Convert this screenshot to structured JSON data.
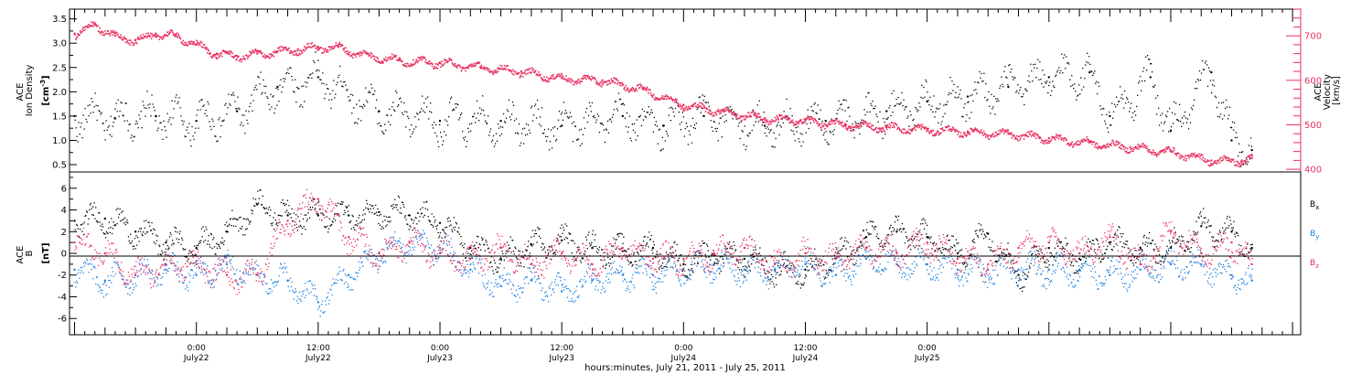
{
  "chart_data": [
    {
      "type": "scatter",
      "panel": "top",
      "ylabel_lines": [
        "ACE",
        "Ion Density"
      ],
      "yunit_base": "[cm",
      "yunit_exp": "-3",
      "yunit_end": "]",
      "ylim": [
        0.35,
        3.7
      ],
      "yticks": [
        "0.5",
        "1.0",
        "1.5",
        "2.0",
        "2.5",
        "3.0",
        "3.5"
      ],
      "y2label_lines": [
        "ACE",
        "Velocity",
        "[km/s]"
      ],
      "y2lim": [
        394,
        760
      ],
      "y2ticks": [
        "400",
        "500",
        "600",
        "700"
      ],
      "xlim_hours": [
        -12.5,
        108.8
      ],
      "series": [
        {
          "color": "#000000",
          "axis": "left",
          "x": [
            -12,
            -8,
            -4,
            0,
            4,
            8,
            12,
            18,
            24,
            30,
            36,
            42,
            46,
            50,
            56,
            62,
            68,
            72,
            76,
            80,
            84,
            88,
            90,
            94,
            96,
            100,
            102,
            104
          ],
          "y": [
            1.5,
            1.45,
            1.5,
            1.4,
            1.6,
            2.1,
            2.3,
            1.6,
            1.4,
            1.4,
            1.3,
            1.5,
            1.3,
            1.5,
            1.3,
            1.4,
            1.6,
            1.8,
            1.9,
            2.1,
            2.3,
            2.4,
            1.5,
            2.3,
            1.2,
            2.4,
            1.0,
            0.8
          ]
        },
        {
          "color": "#e8305f",
          "axis": "right",
          "x": [
            -12,
            -10,
            -8,
            -6,
            -4,
            -2,
            0,
            2,
            4,
            6,
            8,
            10,
            12,
            14,
            16,
            20,
            24,
            28,
            32,
            36,
            40,
            44,
            48,
            52,
            56,
            60,
            64,
            68,
            72,
            76,
            80,
            84,
            88,
            92,
            96,
            100,
            103,
            104
          ],
          "y": [
            705,
            725,
            700,
            690,
            705,
            700,
            680,
            660,
            655,
            660,
            665,
            670,
            675,
            675,
            660,
            645,
            640,
            630,
            620,
            605,
            600,
            580,
            545,
            530,
            515,
            510,
            500,
            495,
            490,
            485,
            480,
            470,
            460,
            450,
            440,
            420,
            420,
            425
          ]
        }
      ]
    },
    {
      "type": "scatter",
      "panel": "bottom",
      "ylabel_lines": [
        "ACE",
        "B"
      ],
      "yunit": "[nT]",
      "ylim": [
        -7.5,
        7.5
      ],
      "yticks": [
        "-6",
        "-4",
        "-2",
        "0",
        "2",
        "4",
        "6"
      ],
      "xlim_hours": [
        -12.5,
        108.8
      ],
      "xticks": [
        {
          "time": "0:00",
          "day": "July22"
        },
        {
          "time": "12:00",
          "day": "July22"
        },
        {
          "time": "0:00",
          "day": "July23"
        },
        {
          "time": "12:00",
          "day": "July23"
        },
        {
          "time": "0:00",
          "day": "July24"
        },
        {
          "time": "12:00",
          "day": "July24"
        },
        {
          "time": "0:00",
          "day": "July25"
        }
      ],
      "xlabel": "hours:minutes, July 21, 2011 - July 25, 2011",
      "legend": [
        {
          "base": "B",
          "sub": "x",
          "color": "#000000"
        },
        {
          "base": "B",
          "sub": "y",
          "color": "#1f7fe0"
        },
        {
          "base": "B",
          "sub": "z",
          "color": "#e8305f"
        }
      ],
      "series": [
        {
          "name": "Bx",
          "color": "#000000",
          "x": [
            -12,
            -9,
            -6,
            -3,
            0,
            3,
            6,
            9,
            12,
            15,
            18,
            21,
            24,
            27,
            30,
            33,
            36,
            39,
            42,
            45,
            48,
            51,
            54,
            57,
            60,
            63,
            66,
            69,
            72,
            75,
            78,
            81,
            84,
            87,
            90,
            93,
            96,
            99,
            102,
            104
          ],
          "y": [
            3,
            3.2,
            2,
            1,
            0.5,
            2,
            4.5,
            3.5,
            3.5,
            3.5,
            3.8,
            3.5,
            2.8,
            0.5,
            -0.5,
            0.8,
            1.2,
            0.5,
            0.2,
            0.5,
            -1,
            -0.2,
            -0.5,
            -1.5,
            -1.5,
            -0.5,
            1.5,
            2,
            1.5,
            0,
            1.8,
            -2,
            0.5,
            -0.5,
            1,
            0.5,
            0.5,
            2.5,
            2,
            0.5
          ]
        },
        {
          "name": "By",
          "color": "#1f7fe0",
          "x": [
            -12,
            -9,
            -6,
            -3,
            0,
            3,
            6,
            9,
            12,
            15,
            18,
            21,
            24,
            27,
            30,
            33,
            36,
            39,
            42,
            45,
            48,
            51,
            54,
            57,
            60,
            63,
            66,
            69,
            72,
            75,
            78,
            81,
            84,
            87,
            90,
            93,
            96,
            99,
            102,
            104
          ],
          "y": [
            -1.5,
            -2.5,
            -2,
            -1.5,
            -2,
            -1,
            -2,
            -2.5,
            -4.5,
            -2,
            0,
            1,
            0.5,
            -1.5,
            -3,
            -2.5,
            -3.5,
            -2.5,
            -2,
            -2,
            -1.5,
            -1,
            -1.5,
            -1.5,
            -1,
            -2,
            -0.5,
            -1,
            -1,
            -1.5,
            -1.5,
            -1.5,
            -1.5,
            -1.5,
            -2,
            -1.5,
            -1,
            -1,
            -2,
            -2.5
          ]
        },
        {
          "name": "Bz",
          "color": "#e8305f",
          "x": [
            -12,
            -9,
            -6,
            -3,
            0,
            3,
            6,
            9,
            12,
            15,
            18,
            21,
            24,
            27,
            30,
            33,
            36,
            39,
            42,
            45,
            48,
            51,
            54,
            57,
            60,
            63,
            66,
            69,
            72,
            75,
            78,
            81,
            84,
            87,
            90,
            93,
            96,
            99,
            102,
            104
          ],
          "y": [
            1,
            0,
            -2,
            -1,
            -1,
            -2,
            -2,
            3,
            5,
            1.5,
            0,
            1,
            0,
            -0.5,
            0.5,
            -1,
            0,
            -1,
            0.5,
            -0.5,
            -0.5,
            0,
            0.5,
            -1,
            0,
            -0.5,
            0.5,
            0,
            1,
            -0.5,
            -1,
            0.5,
            1,
            0,
            1.5,
            -1,
            2,
            0,
            1,
            -1
          ]
        }
      ]
    }
  ]
}
